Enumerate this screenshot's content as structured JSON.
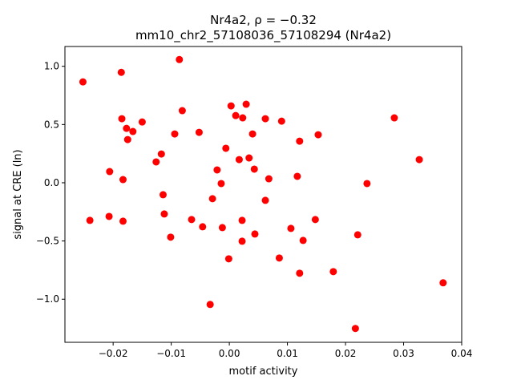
{
  "chart_data": {
    "type": "scatter",
    "title_line1": "Nr4a2, ρ = −0.32",
    "title_line2": "mm10_chr2_57108036_57108294 (Nr4a2)",
    "xlabel": "motif activity",
    "ylabel": "signal at CRE (ln)",
    "xlim": [
      -0.0283,
      0.04
    ],
    "ylim": [
      -1.37,
      1.17
    ],
    "xticks": [
      -0.02,
      -0.01,
      0.0,
      0.01,
      0.02,
      0.03,
      0.04
    ],
    "xtick_labels": [
      "−0.02",
      "−0.01",
      "0.00",
      "0.01",
      "0.02",
      "0.03",
      "0.04"
    ],
    "yticks": [
      -1.0,
      -0.5,
      0.0,
      0.5,
      1.0
    ],
    "ytick_labels": [
      "−1.0",
      "−0.5",
      "0.0",
      "0.5",
      "1.0"
    ],
    "grid": false,
    "marker_color": "#ff0000",
    "points": [
      [
        -0.0252,
        0.866
      ],
      [
        -0.024,
        -0.323
      ],
      [
        -0.0186,
        0.948
      ],
      [
        -0.0185,
        0.55
      ],
      [
        -0.0177,
        0.467
      ],
      [
        -0.0175,
        0.371
      ],
      [
        -0.0166,
        0.44
      ],
      [
        -0.015,
        0.522
      ],
      [
        -0.0206,
        0.096
      ],
      [
        -0.0183,
        0.027
      ],
      [
        -0.0207,
        -0.289
      ],
      [
        -0.0183,
        -0.33
      ],
      [
        -0.0086,
        1.058
      ],
      [
        -0.0081,
        0.619
      ],
      [
        -0.0094,
        0.419
      ],
      [
        -0.0117,
        0.247
      ],
      [
        -0.0126,
        0.179
      ],
      [
        -0.0114,
        -0.103
      ],
      [
        -0.0112,
        -0.268
      ],
      [
        -0.0101,
        -0.467
      ],
      [
        -0.0065,
        -0.316
      ],
      [
        -0.0052,
        0.433
      ],
      [
        -0.0046,
        -0.378
      ],
      [
        -0.0021,
        0.11
      ],
      [
        -0.0029,
        -0.137
      ],
      [
        -0.0014,
        -0.007
      ],
      [
        -0.0012,
        -0.385
      ],
      [
        -0.0006,
        0.296
      ],
      [
        -0.0033,
        -1.045
      ],
      [
        -0.0001,
        -0.653
      ],
      [
        0.0003,
        0.66
      ],
      [
        0.0011,
        0.577
      ],
      [
        0.0023,
        0.557
      ],
      [
        0.0029,
        0.674
      ],
      [
        0.0017,
        0.199
      ],
      [
        0.0034,
        0.213
      ],
      [
        0.004,
        0.419
      ],
      [
        0.0043,
        0.117
      ],
      [
        0.0022,
        -0.323
      ],
      [
        0.0022,
        -0.502
      ],
      [
        0.0044,
        -0.44
      ],
      [
        0.0062,
        0.55
      ],
      [
        0.0068,
        0.034
      ],
      [
        0.0062,
        -0.151
      ],
      [
        0.009,
        0.529
      ],
      [
        0.0086,
        -0.646
      ],
      [
        0.0106,
        -0.392
      ],
      [
        0.0117,
        0.055
      ],
      [
        0.0121,
        0.357
      ],
      [
        0.0127,
        -0.495
      ],
      [
        0.0121,
        -0.777
      ],
      [
        0.0153,
        0.412
      ],
      [
        0.0148,
        -0.316
      ],
      [
        0.0179,
        -0.763
      ],
      [
        0.0221,
        -0.447
      ],
      [
        0.0217,
        -1.251
      ],
      [
        0.0237,
        -0.007
      ],
      [
        0.0284,
        0.557
      ],
      [
        0.0327,
        0.199
      ],
      [
        0.0368,
        -0.859
      ]
    ]
  }
}
